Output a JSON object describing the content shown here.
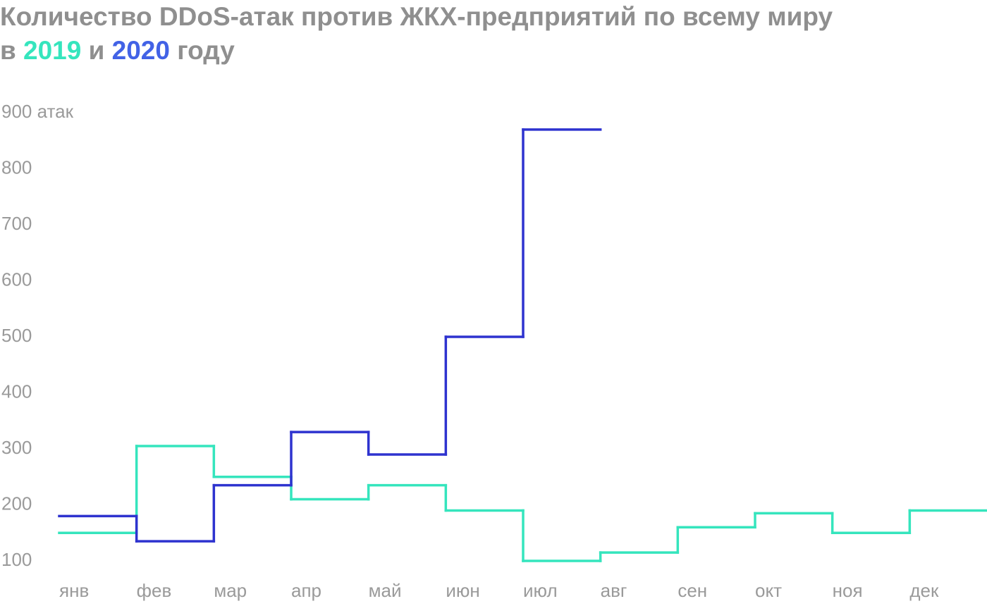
{
  "chart_data": {
    "type": "step",
    "title": "Количество DDoS-атак против ЖКХ-предприятий по всему миру",
    "subtitle_parts": [
      "в",
      "и",
      "году"
    ],
    "categories": [
      "янв",
      "фев",
      "мар",
      "апр",
      "май",
      "июн",
      "июл",
      "авг",
      "сен",
      "окт",
      "ноя",
      "дек"
    ],
    "series": [
      {
        "name": "2019",
        "color": "#35e5bd",
        "values": [
          150,
          305,
          250,
          210,
          235,
          190,
          100,
          115,
          160,
          185,
          150,
          190
        ]
      },
      {
        "name": "2020",
        "color": "#2e33cf",
        "values": [
          180,
          135,
          235,
          330,
          290,
          500,
          870,
          null,
          null,
          null,
          null,
          null
        ]
      }
    ],
    "ylim": [
      100,
      900
    ],
    "yticks": [
      100,
      200,
      300,
      400,
      500,
      600,
      700,
      800,
      {
        "value": 900,
        "label": "900 атак"
      }
    ],
    "grid": false
  }
}
